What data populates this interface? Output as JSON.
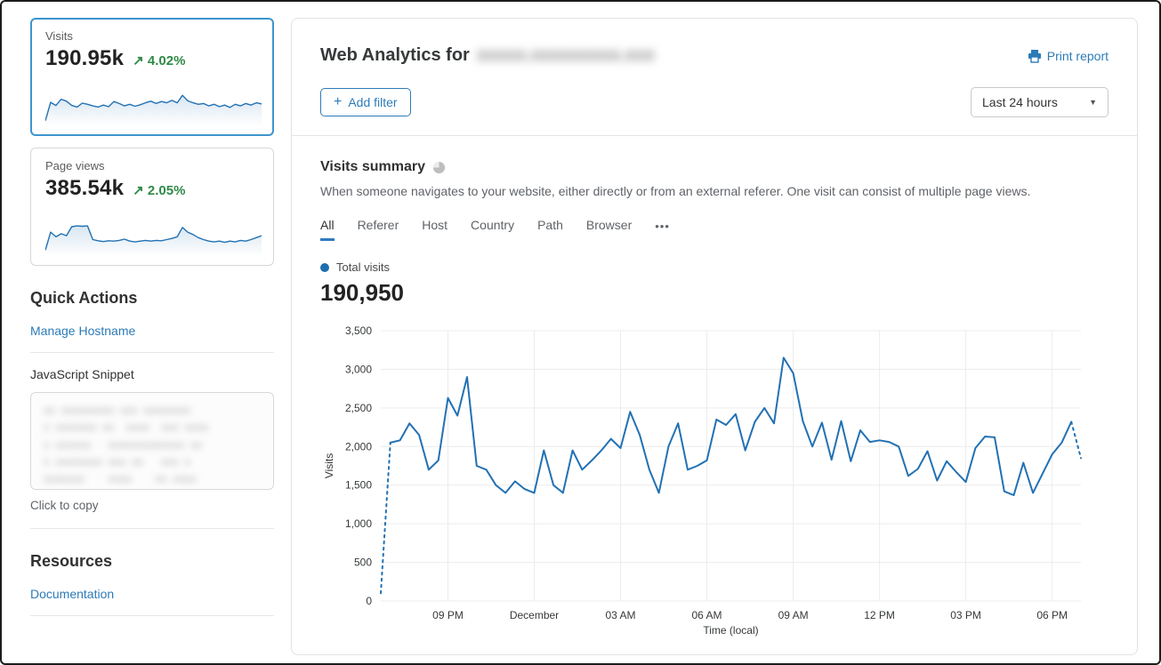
{
  "colors": {
    "accent_blue": "#2c7bb8",
    "line_blue": "#2271b3",
    "delta_green": "#2f8a46",
    "selected_card_border": "#3d94cf",
    "tab_underline": "#2f7bbf",
    "legend_dot": "#1b6fae",
    "grid": "#ececec"
  },
  "sidebar": {
    "metric_cards": [
      {
        "label": "Visits",
        "value": "190.95k",
        "delta_arrow": "↗",
        "delta": "4.02%",
        "spark": [
          5,
          52,
          44,
          60,
          55,
          44,
          40,
          50,
          47,
          43,
          40,
          45,
          41,
          54,
          49,
          43,
          47,
          42,
          46,
          51,
          55,
          49,
          54,
          51,
          57,
          51,
          70,
          56,
          51,
          47,
          49,
          43,
          47,
          41,
          45,
          39,
          47,
          43,
          49,
          45,
          51,
          48
        ]
      },
      {
        "label": "Page views",
        "value": "385.54k",
        "delta_arrow": "↗",
        "delta": "2.05%",
        "spark": [
          6,
          52,
          40,
          48,
          43,
          66,
          68,
          67,
          68,
          33,
          30,
          28,
          30,
          29,
          31,
          34,
          29,
          27,
          29,
          31,
          29,
          31,
          30,
          33,
          36,
          40,
          64,
          52,
          46,
          38,
          33,
          29,
          27,
          29,
          26,
          29,
          27,
          31,
          29,
          33,
          38,
          43
        ]
      }
    ],
    "quick_actions": {
      "title": "Quick Actions",
      "manage_hostname_label": "Manage Hostname",
      "snippet_label": "JavaScript Snippet",
      "snippet_redacted": "xx xxxxxxxxx xxx xxxxxxxx\nx xxxxxxx xx  xxxx  xxx xxxx\nx xxxxxx   xxxxxxxxxxxxx xx\nx xxxxxxxx xxx xx   xxx x\nxxxxxxx    xxxx    xx xxxx",
      "copy_hint": "Click to copy"
    },
    "resources": {
      "title": "Resources",
      "documentation_label": "Documentation"
    }
  },
  "main": {
    "title_prefix": "Web Analytics for",
    "domain_redacted": "xxxxx.xxxxxxxxx.xxx",
    "print_report_label": "Print report",
    "add_filter_label": "Add filter",
    "plus_glyph": "+",
    "time_range_value": "Last 24 hours",
    "caret_glyph": "▼",
    "section": {
      "title": "Visits summary",
      "description": "When someone navigates to your website, either directly or from an external referer. One visit can consist of multiple page views.",
      "tabs": [
        "All",
        "Referer",
        "Host",
        "Country",
        "Path",
        "Browser"
      ],
      "active_tab": "All",
      "more_glyph": "•••"
    },
    "legend_label": "Total visits",
    "total_value": "190,950"
  },
  "chart_data": {
    "type": "line",
    "series_name": "Total visits",
    "xlabel": "Time (local)",
    "ylabel": "Visits",
    "ylim": [
      0,
      3500
    ],
    "ytick_step": 500,
    "grid": true,
    "legend_position": "top-left",
    "line_color": "#2271b3",
    "dashed_head_segments": 1,
    "dashed_tail_segments": 1,
    "x_ticks": [
      {
        "pos": 7,
        "label": "09 PM"
      },
      {
        "pos": 16,
        "label": "December"
      },
      {
        "pos": 25,
        "label": "03 AM"
      },
      {
        "pos": 34,
        "label": "06 AM"
      },
      {
        "pos": 43,
        "label": "09 AM"
      },
      {
        "pos": 52,
        "label": "12 PM"
      },
      {
        "pos": 61,
        "label": "03 PM"
      },
      {
        "pos": 70,
        "label": "06 PM"
      }
    ],
    "values": [
      100,
      2050,
      2080,
      2300,
      2150,
      1700,
      1820,
      2630,
      2400,
      2900,
      1750,
      1700,
      1500,
      1400,
      1550,
      1450,
      1400,
      1950,
      1500,
      1400,
      1950,
      1700,
      1820,
      1950,
      2100,
      1980,
      2450,
      2150,
      1700,
      1400,
      2000,
      2300,
      1700,
      1750,
      1820,
      2350,
      2280,
      2420,
      1950,
      2320,
      2500,
      2300,
      3150,
      2950,
      2330,
      2000,
      2310,
      1830,
      2330,
      1810,
      2210,
      2060,
      2080,
      2060,
      2000,
      1620,
      1710,
      1940,
      1560,
      1810,
      1670,
      1540,
      1980,
      2130,
      2120,
      1420,
      1370,
      1790,
      1400,
      1650,
      1900,
      2050,
      2320,
      1850
    ]
  }
}
